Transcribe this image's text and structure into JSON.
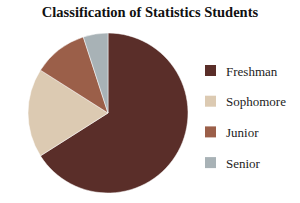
{
  "chart_data": {
    "type": "pie",
    "title": "Classification of Statistics Students",
    "categories": [
      "Freshman",
      "Sophomore",
      "Junior",
      "Senior"
    ],
    "values": [
      66,
      18,
      11,
      5
    ],
    "colors": [
      "#5a2e29",
      "#dccab2",
      "#9b5f49",
      "#a8b2b6"
    ],
    "legend": "right"
  }
}
